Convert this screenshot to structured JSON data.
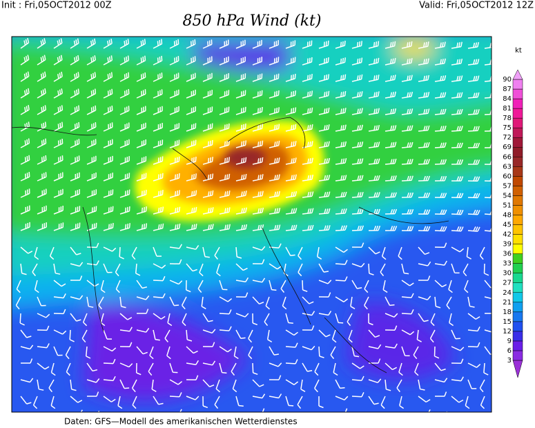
{
  "header": {
    "init": "Init : Fri,05OCT2012 00Z",
    "valid": "Valid: Fri,05OCT2012 12Z",
    "title": "850 hPa Wind (kt)"
  },
  "footer": "Daten: GFS—Modell des amerikanischen Wetterdienstes",
  "colorbar": {
    "unit": "kt",
    "levels": [
      3,
      6,
      9,
      12,
      15,
      18,
      21,
      24,
      27,
      30,
      33,
      36,
      39,
      42,
      45,
      48,
      51,
      54,
      57,
      60,
      63,
      66,
      69,
      72,
      75,
      78,
      81,
      84,
      87,
      90
    ],
    "colors": [
      "#9b30d8",
      "#8a2be2",
      "#6a1fe8",
      "#3a2ee8",
      "#2050f0",
      "#1878f0",
      "#10a0f0",
      "#10c8e8",
      "#20e0c0",
      "#18d890",
      "#20d050",
      "#40d020",
      "#ffff00",
      "#ffe000",
      "#ffc400",
      "#ffa800",
      "#f09000",
      "#e07800",
      "#d06000",
      "#c04800",
      "#a83818",
      "#982828",
      "#901c28",
      "#a01838",
      "#c01858",
      "#e01878",
      "#f01898",
      "#f020b8",
      "#f050d8",
      "#f080f0",
      "#f0a0f8"
    ]
  }
}
